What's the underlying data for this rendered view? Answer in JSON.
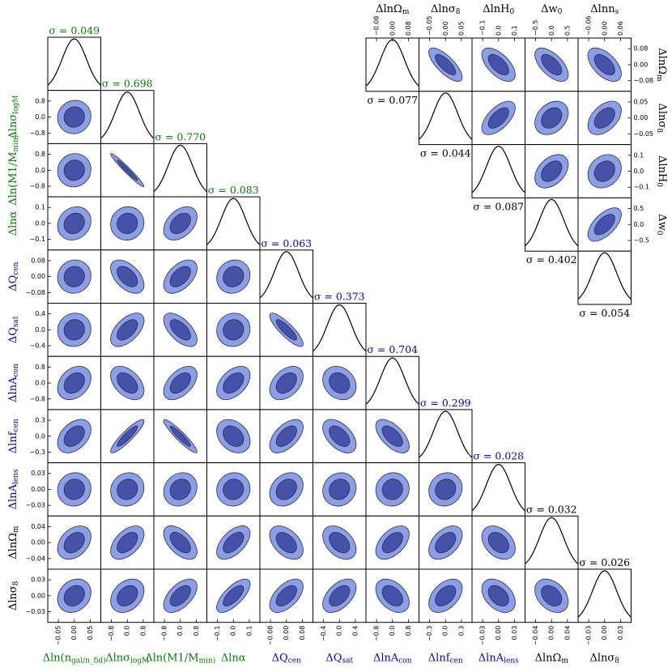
{
  "chart_data": [
    {
      "type": "contour-corner",
      "label_colors": {
        "hod": "#008000",
        "sys": "#0000cc",
        "cosmo": "#000000"
      },
      "fill_colors": {
        "inner": "#4652a8",
        "outer": "#8c9fe4",
        "outline": "#2a2d5c"
      },
      "parameters": [
        {
          "key": "ngal",
          "label": "Δln(n_gal/n_fid)",
          "group": "hod",
          "sigma_text": "σ = 0.049",
          "ticks": [
            "−0.05",
            "0.00",
            "0.05"
          ]
        },
        {
          "key": "sigma_logM",
          "label": "Δlnσ_logM",
          "group": "hod",
          "sigma_text": "σ = 0.698",
          "ticks": [
            "−0.8",
            "0.0",
            "0.8"
          ]
        },
        {
          "key": "M1",
          "label": "Δln(M1/M_min)",
          "group": "hod",
          "sigma_text": "σ = 0.770",
          "ticks": [
            "−0.8",
            "0.0",
            "0.8"
          ]
        },
        {
          "key": "alpha",
          "label": "Δlnα",
          "group": "hod",
          "sigma_text": "σ = 0.083",
          "ticks": [
            "−0.1",
            "0.0",
            "0.1"
          ]
        },
        {
          "key": "Qcen",
          "label": "ΔQ_cen",
          "group": "sys",
          "sigma_text": "σ = 0.063",
          "ticks": [
            "−0.08",
            "0.00",
            "0.08"
          ]
        },
        {
          "key": "Qsat",
          "label": "ΔQ_sat",
          "group": "sys",
          "sigma_text": "σ = 0.373",
          "ticks": [
            "−0.4",
            "0.0",
            "0.4"
          ]
        },
        {
          "key": "Acon",
          "label": "ΔlnA_con",
          "group": "sys",
          "sigma_text": "σ = 0.704",
          "ticks": [
            "−0.8",
            "0.0",
            "0.8"
          ]
        },
        {
          "key": "fcen",
          "label": "Δlnf_cen",
          "group": "sys",
          "sigma_text": "σ = 0.299",
          "ticks": [
            "−0.3",
            "0.0",
            "0.3"
          ]
        },
        {
          "key": "Alens",
          "label": "ΔlnA_lens",
          "group": "sys",
          "sigma_text": "σ = 0.028",
          "ticks": [
            "−0.03",
            "0.00",
            "0.03"
          ]
        },
        {
          "key": "Om",
          "label": "ΔlnΩ_m",
          "group": "cosmo",
          "sigma_text": "σ = 0.032",
          "ticks": [
            "−0.04",
            "0.00",
            "0.04"
          ]
        },
        {
          "key": "s8",
          "label": "Δlnσ_8",
          "group": "cosmo",
          "sigma_text": "σ = 0.026",
          "ticks": [
            "−0.03",
            "0.00",
            "0.03"
          ]
        }
      ],
      "correlations": [
        [
          0,
          1,
          0.05
        ],
        [
          0,
          2,
          0.05
        ],
        [
          0,
          3,
          0.15
        ],
        [
          0,
          4,
          0.05
        ],
        [
          0,
          5,
          0.05
        ],
        [
          0,
          6,
          0.3
        ],
        [
          0,
          7,
          0.4
        ],
        [
          0,
          8,
          0.05
        ],
        [
          0,
          9,
          0.35
        ],
        [
          0,
          10,
          0.2
        ],
        [
          1,
          2,
          -0.97
        ],
        [
          1,
          3,
          0.05
        ],
        [
          1,
          4,
          -0.5
        ],
        [
          1,
          5,
          0.55
        ],
        [
          1,
          6,
          -0.45
        ],
        [
          1,
          7,
          0.9
        ],
        [
          1,
          8,
          0.1
        ],
        [
          1,
          9,
          0.5
        ],
        [
          1,
          10,
          0.3
        ],
        [
          2,
          3,
          0.4
        ],
        [
          2,
          4,
          0.5
        ],
        [
          2,
          5,
          -0.6
        ],
        [
          2,
          6,
          0.5
        ],
        [
          2,
          7,
          -0.93
        ],
        [
          2,
          8,
          0.15
        ],
        [
          2,
          9,
          -0.55
        ],
        [
          2,
          10,
          0.55
        ],
        [
          3,
          4,
          0.1
        ],
        [
          3,
          5,
          0.05
        ],
        [
          3,
          6,
          0.45
        ],
        [
          3,
          7,
          -0.3
        ],
        [
          3,
          8,
          0.05
        ],
        [
          3,
          9,
          0.55
        ],
        [
          3,
          10,
          0.7
        ],
        [
          4,
          5,
          -0.85
        ],
        [
          4,
          6,
          0.4
        ],
        [
          4,
          7,
          0.55
        ],
        [
          4,
          8,
          0.25
        ],
        [
          4,
          9,
          -0.45
        ],
        [
          4,
          10,
          0.55
        ],
        [
          5,
          6,
          -0.2
        ],
        [
          5,
          7,
          -0.5
        ],
        [
          5,
          8,
          0.1
        ],
        [
          5,
          9,
          -0.4
        ],
        [
          5,
          10,
          0.5
        ],
        [
          6,
          7,
          -0.6
        ],
        [
          6,
          8,
          0.05
        ],
        [
          6,
          9,
          0.5
        ],
        [
          6,
          10,
          -0.4
        ],
        [
          7,
          8,
          0.1
        ],
        [
          7,
          9,
          0.45
        ],
        [
          7,
          10,
          0.45
        ],
        [
          8,
          9,
          -0.35
        ],
        [
          8,
          10,
          -0.4
        ],
        [
          9,
          10,
          -0.35
        ]
      ]
    },
    {
      "type": "contour-corner",
      "parameters": [
        {
          "key": "Om",
          "label": "ΔlnΩ_m",
          "sigma_text": "σ = 0.077",
          "ticks": [
            "−0.08",
            "0.00",
            "0.08"
          ]
        },
        {
          "key": "s8",
          "label": "Δlnσ_8",
          "sigma_text": "σ = 0.044",
          "ticks": [
            "−0.05",
            "0.00",
            "0.05"
          ]
        },
        {
          "key": "H0",
          "label": "ΔlnH_0",
          "sigma_text": "σ = 0.087",
          "ticks": [
            "−0.1",
            "0.0",
            "0.1"
          ]
        },
        {
          "key": "w0",
          "label": "Δw_0",
          "sigma_text": "σ = 0.402",
          "ticks": [
            "−0.5",
            "0.0",
            "0.5"
          ]
        },
        {
          "key": "ns",
          "label": "Δlnn_s",
          "sigma_text": "σ = 0.054",
          "ticks": [
            "−0.06",
            "0.00",
            "0.06"
          ]
        }
      ],
      "correlations": [
        [
          0,
          1,
          -0.75
        ],
        [
          0,
          2,
          -0.6
        ],
        [
          0,
          3,
          -0.6
        ],
        [
          0,
          4,
          -0.55
        ],
        [
          1,
          2,
          0.6
        ],
        [
          1,
          3,
          0.3
        ],
        [
          1,
          4,
          0.45
        ],
        [
          2,
          3,
          0.4
        ],
        [
          2,
          4,
          0.2
        ],
        [
          3,
          4,
          0.6
        ]
      ]
    }
  ]
}
